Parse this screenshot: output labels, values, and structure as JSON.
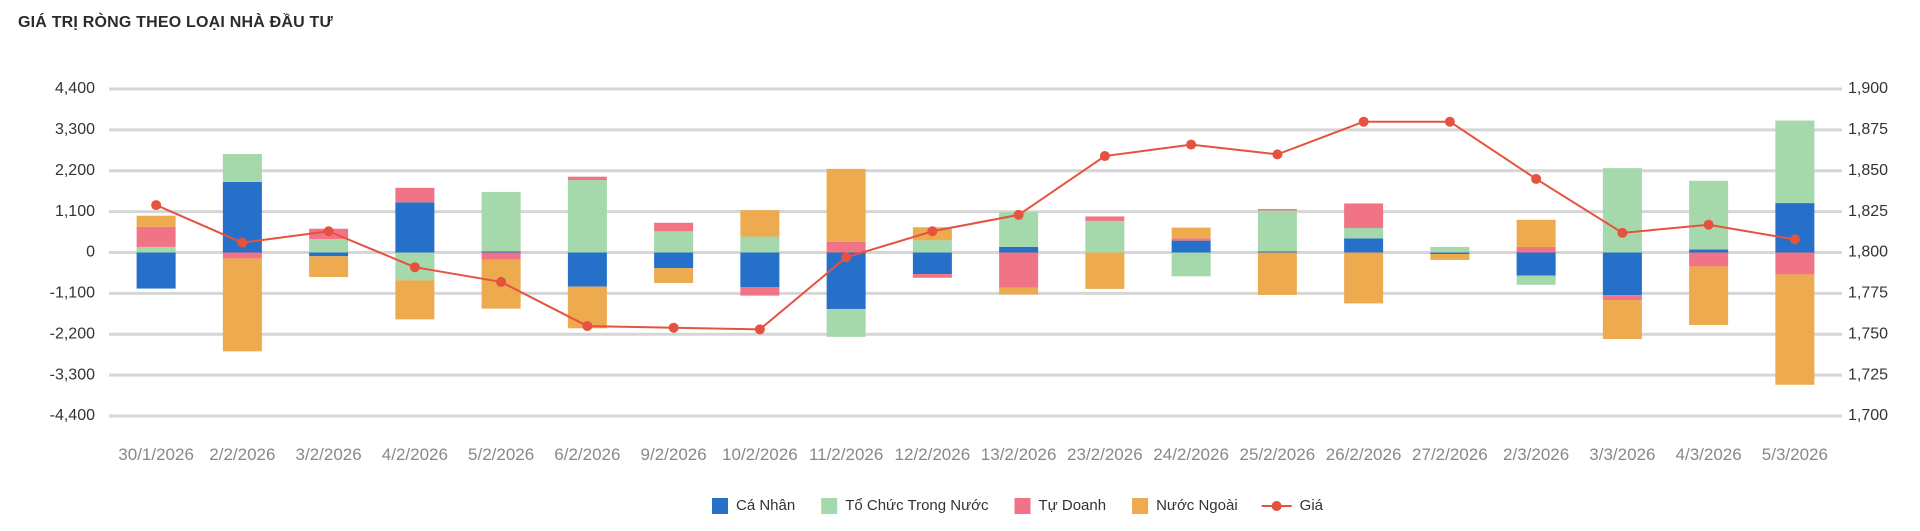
{
  "chart_data": {
    "type": "bar",
    "stacked": true,
    "title": "GIÁ TRỊ RÒNG THEO LOẠI NHÀ ĐẦU TƯ",
    "categories": [
      "30/1/2026",
      "2/2/2026",
      "3/2/2026",
      "4/2/2026",
      "5/2/2026",
      "6/2/2026",
      "9/2/2026",
      "10/2/2026",
      "11/2/2026",
      "12/2/2026",
      "13/2/2026",
      "23/2/2026",
      "24/2/2026",
      "25/2/2026",
      "26/2/2026",
      "27/2/2026",
      "2/3/2026",
      "3/3/2026",
      "4/3/2026",
      "5/3/2026"
    ],
    "y_left": {
      "ticks": [
        4400,
        3300,
        2200,
        1100,
        0,
        -1100,
        -2200,
        -3300,
        -4400
      ],
      "tick_labels": [
        "4,400",
        "3,300",
        "2,200",
        "1,100",
        "0",
        "-1,100",
        "-2,200",
        "-3,300",
        "-4,400"
      ],
      "range": [
        -4400,
        4400
      ]
    },
    "y_right": {
      "ticks": [
        1900,
        1875,
        1850,
        1825,
        1800,
        1775,
        1750,
        1725,
        1700
      ],
      "tick_labels": [
        "1,900",
        "1,875",
        "1,850",
        "1,825",
        "1,800",
        "1,775",
        "1,750",
        "1,725",
        "1,700"
      ],
      "range": [
        1700,
        1900
      ]
    },
    "grid": true,
    "legend_position": "bottom-center",
    "series": [
      {
        "name": "Cá Nhân",
        "color": "#2670c9",
        "values": [
          -970,
          1900,
          -100,
          1350,
          30,
          -920,
          -420,
          -930,
          -1520,
          -580,
          150,
          0,
          320,
          30,
          380,
          -40,
          -620,
          -1150,
          80,
          1330
        ]
      },
      {
        "name": "Tổ Chức Trong Nước",
        "color": "#a5d8ab",
        "values": [
          150,
          750,
          360,
          -750,
          1600,
          1950,
          570,
          430,
          -750,
          330,
          940,
          850,
          -640,
          1100,
          280,
          150,
          -250,
          2270,
          1850,
          2220
        ]
      },
      {
        "name": "Tự Doanh",
        "color": "#f07386",
        "values": [
          540,
          -160,
          280,
          390,
          -190,
          90,
          230,
          -230,
          290,
          -100,
          -950,
          120,
          60,
          40,
          660,
          0,
          150,
          -130,
          -380,
          -590
        ]
      },
      {
        "name": "Nước Ngoài",
        "color": "#edaa4f",
        "values": [
          300,
          -2500,
          -560,
          -1050,
          -1320,
          -1120,
          -400,
          710,
          1960,
          350,
          -180,
          -980,
          290,
          -1140,
          -1370,
          -160,
          730,
          -1050,
          -1570,
          -2970
        ]
      }
    ],
    "line": {
      "name": "Giá",
      "color": "#e5533f",
      "axis": "right",
      "values": [
        1829,
        1806,
        1813,
        1791,
        1782,
        1755,
        1754,
        1753,
        1797,
        1813,
        1823,
        1859,
        1866,
        1860,
        1880,
        1880,
        1845,
        1812,
        1817,
        1808
      ]
    }
  }
}
